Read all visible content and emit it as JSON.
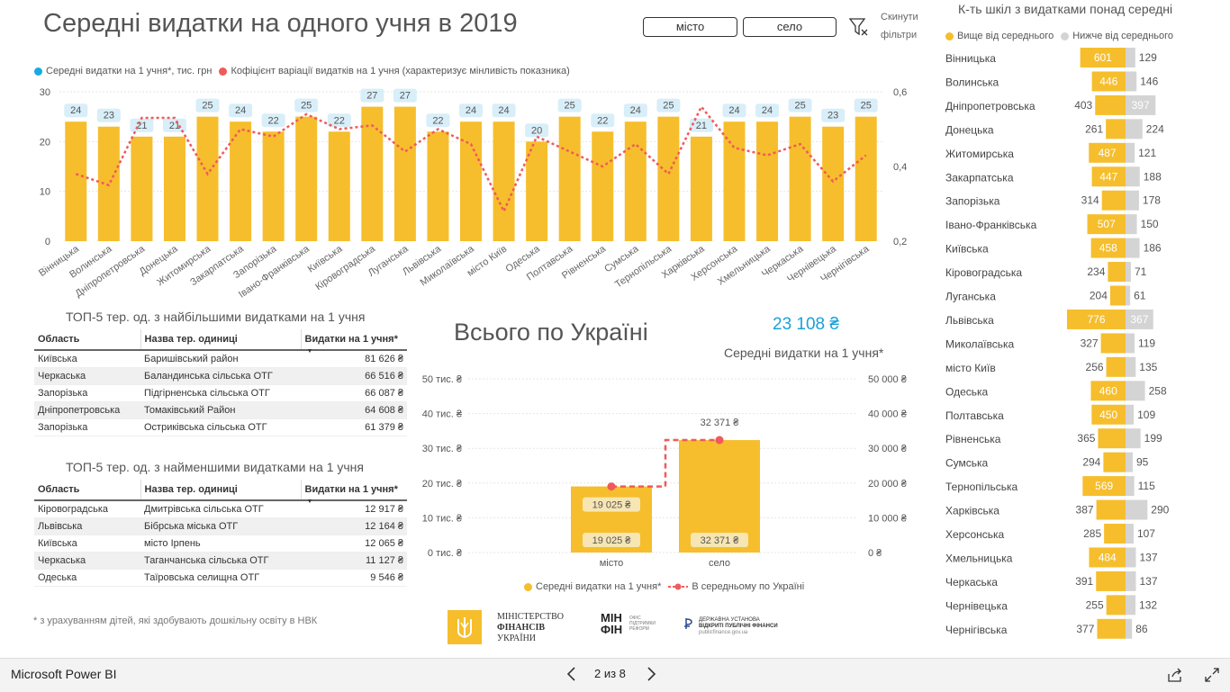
{
  "title": "Середні видатки на одного учня в 2019",
  "slicer": {
    "city": "місто",
    "village": "село"
  },
  "reset_filters": {
    "line1": "Скинути",
    "line2": "фільтри"
  },
  "chart_data": [
    {
      "type": "bar",
      "legend": [
        "Середні видатки на 1 учня*, тис. грн",
        "Кофіцієнт варіації видатків на 1 учня (характеризує мінливість показника)"
      ],
      "colors": {
        "bar": "#f6be2c",
        "line": "#f05a5a",
        "label_bg": "#d8eef8"
      },
      "categories": [
        "Вінницька",
        "Волинська",
        "Дніпропетровська",
        "Донецька",
        "Житомирська",
        "Закарпатська",
        "Запорізька",
        "Івано-Франківська",
        "Київська",
        "Кіровоградська",
        "Луганська",
        "Львівська",
        "Миколаївська",
        "місто Київ",
        "Одеська",
        "Полтавська",
        "Рівненська",
        "Сумська",
        "Тернопільська",
        "Харківська",
        "Херсонська",
        "Хмельницька",
        "Черкаська",
        "Чернівецька",
        "Чернігівська"
      ],
      "series": [
        {
          "name": "Середні видатки на 1 учня*, тис. грн",
          "axis": "left",
          "values": [
            24,
            23,
            21,
            21,
            25,
            24,
            22,
            25,
            22,
            27,
            27,
            22,
            24,
            24,
            20,
            25,
            22,
            24,
            25,
            21,
            24,
            24,
            25,
            23,
            25
          ],
          "labels": [
            "24",
            "23",
            "21",
            "21",
            "25",
            "24",
            "22",
            "25",
            "22",
            "27",
            "27",
            "22",
            "24",
            "24",
            "20",
            "25",
            "22",
            "24",
            "25",
            "21",
            "24",
            "24",
            "25",
            "23",
            "25"
          ]
        },
        {
          "name": "Кофіцієнт варіації видатків на 1 учня (характеризує мінливість показника)",
          "axis": "right",
          "values": [
            0.38,
            0.35,
            0.53,
            0.53,
            0.38,
            0.5,
            0.48,
            0.54,
            0.5,
            0.51,
            0.44,
            0.5,
            0.46,
            0.28,
            0.48,
            0.44,
            0.4,
            0.46,
            0.38,
            0.56,
            0.45,
            0.43,
            0.46,
            0.36,
            0.43
          ]
        }
      ],
      "yticks_left": [
        "30",
        "20",
        "10",
        "0"
      ],
      "yticks_right": [
        "0,6",
        "0,4",
        "0,2"
      ],
      "ylim": [
        0,
        30
      ],
      "ylim_right": [
        0.2,
        0.6
      ],
      "grid": true
    },
    {
      "type": "bar",
      "categories": [
        "місто",
        "село"
      ],
      "series": [
        {
          "name": "Середні видатки на 1 учня*",
          "values": [
            19025,
            32371
          ],
          "labels": [
            "19 025 ₴",
            "32 371 ₴"
          ]
        },
        {
          "name": "В середньому по Україні",
          "values": [
            19025,
            32371
          ],
          "labels": [
            "19 025 ₴",
            "32 371 ₴"
          ]
        }
      ],
      "yticks_left": [
        "50 тис. ₴",
        "40 тис. ₴",
        "30 тис. ₴",
        "20 тис. ₴",
        "10 тис. ₴",
        "0 тис. ₴"
      ],
      "yticks_right": [
        "50 000 ₴",
        "40 000 ₴",
        "30 000 ₴",
        "20 000 ₴",
        "10 000 ₴",
        "0 ₴"
      ],
      "ylim": [
        0,
        50000
      ],
      "legend": [
        "Середні видатки на 1 учня*",
        "В середньому по Україні"
      ]
    },
    {
      "type": "bar",
      "orientation": "diverging",
      "title": "К-ть шкіл з видатками понад середні",
      "legend": [
        "Вище від середнього",
        "Нижче від середнього"
      ],
      "colors": {
        "above": "#f6be2c",
        "below": "#d4d4d4"
      },
      "categories": [
        "Вінницька",
        "Волинська",
        "Дніпропетровська",
        "Донецька",
        "Житомирська",
        "Закарпатська",
        "Запорізька",
        "Івано-Франківська",
        "Київська",
        "Кіровоградська",
        "Луганська",
        "Львівська",
        "Миколаївська",
        "місто Київ",
        "Одеська",
        "Полтавська",
        "Рівненська",
        "Сумська",
        "Тернопільська",
        "Харківська",
        "Херсонська",
        "Хмельницька",
        "Черкаська",
        "Чернівецька",
        "Чернігівська"
      ],
      "series": [
        {
          "name": "Вище від середнього",
          "values": [
            601,
            446,
            403,
            261,
            487,
            447,
            314,
            507,
            458,
            234,
            204,
            776,
            327,
            256,
            460,
            450,
            365,
            294,
            569,
            387,
            285,
            484,
            391,
            255,
            377
          ]
        },
        {
          "name": "Нижче від середнього",
          "values": [
            129,
            146,
            397,
            224,
            121,
            188,
            178,
            150,
            186,
            71,
            61,
            367,
            119,
            135,
            258,
            109,
            199,
            95,
            115,
            290,
            107,
            137,
            137,
            132,
            86
          ]
        }
      ]
    }
  ],
  "top5_max": {
    "title": "ТОП-5 тер. од. з найбільшими видатками на 1 учня",
    "columns": [
      "Область",
      "Назва тер. одиниці",
      "Видатки на 1 учня*"
    ],
    "rows": [
      [
        "Київська",
        "Баришівський район",
        "81 626 ₴"
      ],
      [
        "Черкаська",
        "Баландинська сільська ОТГ",
        "66 516 ₴"
      ],
      [
        "Запорізька",
        "Підгірненська сільська ОТГ",
        "66 087 ₴"
      ],
      [
        "Дніпропетровська",
        "Томаківський Район",
        "64 608 ₴"
      ],
      [
        "Запорізька",
        "Остриківська сільська ОТГ",
        "61 379 ₴"
      ]
    ]
  },
  "top5_min": {
    "title": "ТОП-5 тер. од. з найменшими видатками на 1 учня",
    "columns": [
      "Область",
      "Назва тер. одиниці",
      "Видатки на 1 учня*"
    ],
    "rows": [
      [
        "Кіровоградська",
        "Дмитрівська сільська ОТГ",
        "12 917 ₴"
      ],
      [
        "Львівська",
        "Бібрська міська ОТГ",
        "12 164 ₴"
      ],
      [
        "Київська",
        "місто Ірпень",
        "12 065 ₴"
      ],
      [
        "Черкаська",
        "Таганчанська сільська ОТГ",
        "11 127 ₴"
      ],
      [
        "Одеська",
        "Таїровська селищна ОТГ",
        "9 546 ₴"
      ]
    ]
  },
  "ukraine": {
    "title": "Всього по Україні",
    "kpi_value": "23 108 ₴",
    "kpi_label": "Середні видатки на 1 учня*"
  },
  "footnote": "* з урахуванням дітей, які здобувають дошкільну освіту в НВК",
  "logos": {
    "minfin_line1": "МІНІСТЕРСТВО",
    "minfin_line2": "ФІНАНСІВ",
    "minfin_line3": "УКРАЇНИ",
    "office_line1": "МІН",
    "office_line2": "ФІН",
    "office_small1": "ОФІС",
    "office_small2": "ПІДТРИМКИ",
    "office_small3": "РЕФОРМ",
    "state_line1": "ДЕРЖАВНА УСТАНОВА",
    "state_line2": "ВІДКРИТІ ПУБЛІЧНІ ФІНАНСИ",
    "state_line3": "publicfinance.gov.ua"
  },
  "footer": {
    "brand": "Microsoft Power BI",
    "pager": "2 из 8"
  }
}
